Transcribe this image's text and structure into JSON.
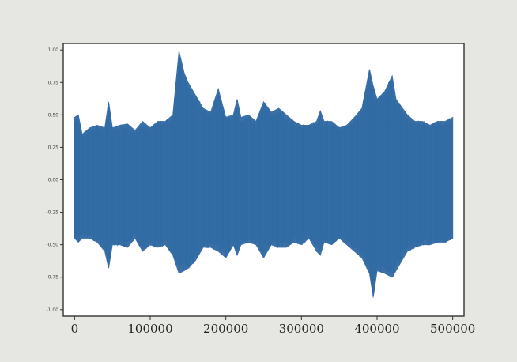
{
  "chart_data": {
    "type": "line",
    "title": "",
    "xlabel": "",
    "ylabel": "",
    "xlim": [
      -15000,
      515000
    ],
    "ylim": [
      -1.05,
      1.05
    ],
    "grid": false,
    "legend": "none",
    "color": "#3b70a8",
    "x_ticks": [
      0,
      100000,
      200000,
      300000,
      400000,
      500000
    ],
    "x_tick_labels": [
      "0",
      "100000",
      "200000",
      "300000",
      "400000",
      "500000"
    ],
    "y_ticks": [
      1.0,
      0.75,
      0.5,
      0.25,
      0.0,
      -0.25,
      -0.5,
      -0.75,
      -1.0
    ],
    "y_tick_labels": [
      "1.00",
      "0.75",
      "0.50",
      "0.25",
      "0.00",
      "-0.25",
      "-0.50",
      "-0.75",
      "-1.00"
    ],
    "series": [
      {
        "description": "audio waveform envelope (approximate upper and lower amplitude bounds)",
        "x": [
          0,
          5000,
          10000,
          20000,
          30000,
          40000,
          45000,
          50000,
          60000,
          70000,
          80000,
          90000,
          100000,
          110000,
          120000,
          130000,
          138000,
          145000,
          150000,
          160000,
          170000,
          180000,
          190000,
          200000,
          210000,
          215000,
          220000,
          230000,
          240000,
          250000,
          260000,
          270000,
          280000,
          290000,
          300000,
          310000,
          320000,
          325000,
          330000,
          340000,
          350000,
          360000,
          370000,
          380000,
          390000,
          395000,
          400000,
          410000,
          420000,
          425000,
          430000,
          440000,
          450000,
          460000,
          470000,
          480000,
          490000,
          500000
        ],
        "upper": [
          0.48,
          0.5,
          0.35,
          0.4,
          0.42,
          0.4,
          0.6,
          0.4,
          0.42,
          0.43,
          0.38,
          0.45,
          0.4,
          0.45,
          0.45,
          0.5,
          0.99,
          0.82,
          0.75,
          0.65,
          0.55,
          0.52,
          0.7,
          0.48,
          0.5,
          0.62,
          0.48,
          0.5,
          0.45,
          0.6,
          0.52,
          0.55,
          0.5,
          0.45,
          0.42,
          0.42,
          0.45,
          0.53,
          0.45,
          0.45,
          0.4,
          0.42,
          0.48,
          0.55,
          0.85,
          0.72,
          0.62,
          0.68,
          0.8,
          0.62,
          0.58,
          0.5,
          0.45,
          0.45,
          0.42,
          0.45,
          0.45,
          0.48
        ],
        "lower": [
          -0.45,
          -0.48,
          -0.45,
          -0.45,
          -0.48,
          -0.55,
          -0.68,
          -0.5,
          -0.5,
          -0.52,
          -0.45,
          -0.55,
          -0.5,
          -0.52,
          -0.5,
          -0.58,
          -0.72,
          -0.7,
          -0.68,
          -0.62,
          -0.52,
          -0.52,
          -0.55,
          -0.6,
          -0.5,
          -0.58,
          -0.5,
          -0.48,
          -0.5,
          -0.6,
          -0.5,
          -0.52,
          -0.52,
          -0.48,
          -0.5,
          -0.45,
          -0.55,
          -0.58,
          -0.48,
          -0.5,
          -0.45,
          -0.5,
          -0.55,
          -0.6,
          -0.72,
          -0.9,
          -0.7,
          -0.72,
          -0.75,
          -0.7,
          -0.65,
          -0.55,
          -0.52,
          -0.5,
          -0.5,
          -0.48,
          -0.48,
          -0.45
        ]
      }
    ]
  }
}
